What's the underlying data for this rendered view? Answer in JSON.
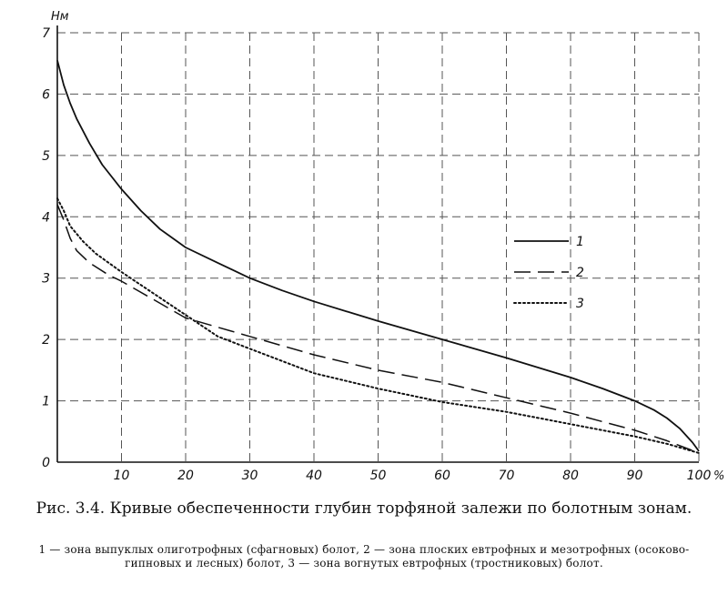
{
  "chart_data": {
    "type": "line",
    "xlabel": "%",
    "ylabel": "Нм",
    "xlim": [
      0,
      100
    ],
    "ylim": [
      0,
      7
    ],
    "x_ticks": [
      10,
      20,
      30,
      40,
      50,
      60,
      70,
      80,
      90,
      100
    ],
    "x_tick_labels": [
      "10",
      "20",
      "30",
      "40",
      "50",
      "60",
      "70",
      "80",
      "90",
      "100"
    ],
    "y_ticks": [
      0,
      1,
      2,
      3,
      4,
      5,
      6,
      7
    ],
    "y_tick_labels": [
      "0",
      "1",
      "2",
      "3",
      "4",
      "5",
      "6",
      "7"
    ],
    "grid": true,
    "legend_position": "right",
    "series": [
      {
        "name": "1",
        "style": "solid",
        "x": [
          0,
          1,
          2,
          3,
          5,
          7,
          10,
          13,
          16,
          20,
          25,
          30,
          35,
          40,
          50,
          60,
          70,
          80,
          85,
          90,
          93,
          95,
          97,
          99,
          100
        ],
        "y": [
          6.55,
          6.15,
          5.85,
          5.6,
          5.2,
          4.85,
          4.45,
          4.1,
          3.8,
          3.5,
          3.25,
          3.0,
          2.8,
          2.62,
          2.3,
          2.0,
          1.7,
          1.38,
          1.2,
          1.0,
          0.85,
          0.72,
          0.55,
          0.32,
          0.18
        ]
      },
      {
        "name": "2",
        "style": "dashed",
        "x": [
          0,
          1,
          2,
          3,
          5,
          8,
          10,
          15,
          20,
          30,
          40,
          50,
          60,
          70,
          80,
          90,
          95,
          100
        ],
        "y": [
          4.2,
          3.95,
          3.65,
          3.45,
          3.25,
          3.05,
          2.95,
          2.65,
          2.35,
          2.05,
          1.75,
          1.5,
          1.3,
          1.05,
          0.8,
          0.52,
          0.35,
          0.15
        ]
      },
      {
        "name": "3",
        "style": "dotted",
        "x": [
          0,
          1,
          2,
          4,
          6,
          10,
          15,
          20,
          25,
          30,
          40,
          50,
          60,
          70,
          80,
          90,
          95,
          100
        ],
        "y": [
          4.3,
          4.1,
          3.85,
          3.6,
          3.4,
          3.1,
          2.75,
          2.4,
          2.05,
          1.85,
          1.45,
          1.2,
          0.98,
          0.82,
          0.62,
          0.42,
          0.3,
          0.15
        ]
      }
    ]
  },
  "caption": {
    "title": "Рис. 3.4. Кривые обеспеченности глубин торфяной залежи по болотным зонам.",
    "note": "1 — зона выпуклых олиготрофных (сфагновых) болот, 2 — зона плоских евтрофных и мезотрофных (осоково-гипновых и лесных) болот, 3 — зона вогнутых евтрофных (тростниковых) болот."
  }
}
